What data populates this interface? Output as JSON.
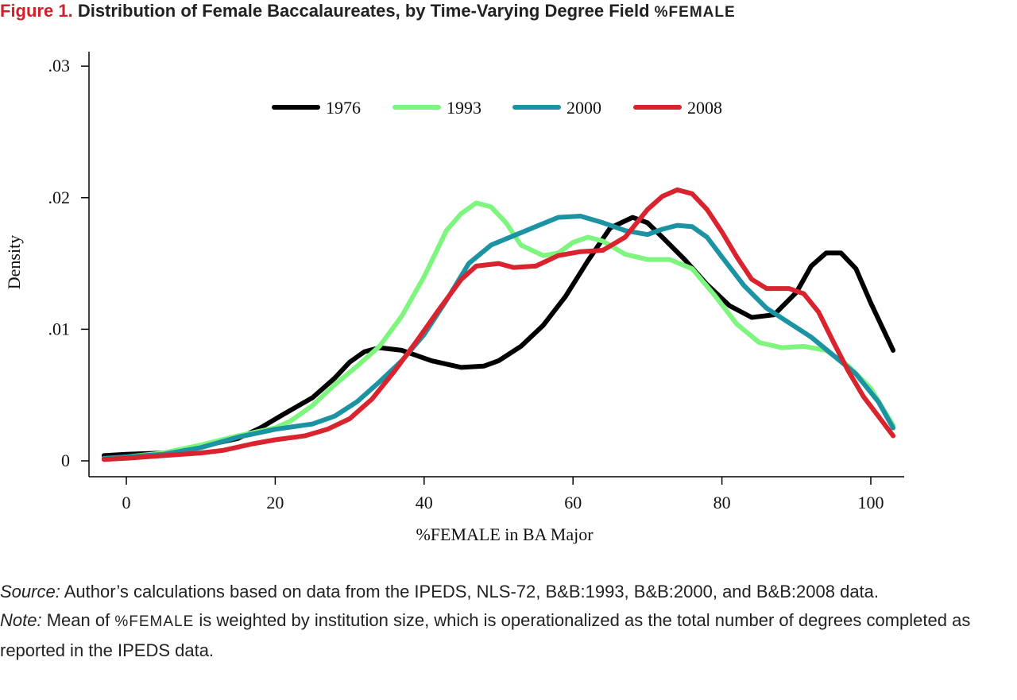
{
  "figure": {
    "label": "Figure 1.",
    "title_main": "Distribution of Female Baccalaureates, by Time-Varying Degree Field ",
    "title_sc": "%FEMALE"
  },
  "notes": {
    "source_label": "Source:",
    "source_text": "Author’s calculations based on data from the IPEDS, NLS-72, B&B:1993, B&B:2000, and B&B:2008 data.",
    "note_label": "Note:",
    "note_pre": "Mean of ",
    "note_sc": "%FEMALE",
    "note_post": " is weighted by institution size, which is operationalized as the total number of degrees completed as reported in the IPEDS data."
  },
  "chart_data": {
    "type": "line",
    "xlabel": "%FEMALE in BA Major",
    "ylabel": "Density",
    "xlim": [
      -3,
      103
    ],
    "ylim": [
      0,
      0.03
    ],
    "xticks": [
      0,
      20,
      40,
      60,
      80,
      100
    ],
    "xtick_labels": [
      "0",
      "20",
      "40",
      "60",
      "80",
      "100"
    ],
    "yticks": [
      0,
      0.01,
      0.02,
      0.03
    ],
    "ytick_labels": [
      "0",
      ".01",
      ".02",
      ".03"
    ],
    "grid": false,
    "legend_position": "top",
    "series": [
      {
        "name": "1976",
        "color": "#000000",
        "points": [
          [
            -3,
            0.0004
          ],
          [
            0,
            0.0005
          ],
          [
            5,
            0.0006
          ],
          [
            10,
            0.0011
          ],
          [
            15,
            0.0017
          ],
          [
            18,
            0.0025
          ],
          [
            21,
            0.0035
          ],
          [
            25,
            0.0048
          ],
          [
            28,
            0.0063
          ],
          [
            30,
            0.0075
          ],
          [
            32,
            0.0083
          ],
          [
            34,
            0.0086
          ],
          [
            37,
            0.0084
          ],
          [
            41,
            0.0076
          ],
          [
            45,
            0.0071
          ],
          [
            48,
            0.0072
          ],
          [
            50,
            0.0076
          ],
          [
            53,
            0.0087
          ],
          [
            56,
            0.0103
          ],
          [
            59,
            0.0125
          ],
          [
            62,
            0.0152
          ],
          [
            65,
            0.0177
          ],
          [
            68,
            0.0185
          ],
          [
            70,
            0.0181
          ],
          [
            72,
            0.017
          ],
          [
            75,
            0.0153
          ],
          [
            78,
            0.0134
          ],
          [
            81,
            0.0118
          ],
          [
            84,
            0.0109
          ],
          [
            87,
            0.0111
          ],
          [
            90,
            0.0128
          ],
          [
            92,
            0.0148
          ],
          [
            94,
            0.0158
          ],
          [
            96,
            0.0158
          ],
          [
            98,
            0.0146
          ],
          [
            100,
            0.012
          ],
          [
            103,
            0.0084
          ]
        ]
      },
      {
        "name": "1993",
        "color": "#7ef57e",
        "points": [
          [
            -3,
            0.0001
          ],
          [
            0,
            0.0003
          ],
          [
            5,
            0.0006
          ],
          [
            10,
            0.0012
          ],
          [
            15,
            0.0019
          ],
          [
            20,
            0.0025
          ],
          [
            22,
            0.003
          ],
          [
            25,
            0.0042
          ],
          [
            28,
            0.0058
          ],
          [
            31,
            0.0072
          ],
          [
            34,
            0.0087
          ],
          [
            37,
            0.011
          ],
          [
            40,
            0.014
          ],
          [
            43,
            0.0175
          ],
          [
            45,
            0.0188
          ],
          [
            47,
            0.0196
          ],
          [
            49,
            0.0193
          ],
          [
            51,
            0.0181
          ],
          [
            53,
            0.0164
          ],
          [
            56,
            0.0156
          ],
          [
            58,
            0.0158
          ],
          [
            60,
            0.0166
          ],
          [
            62,
            0.017
          ],
          [
            64,
            0.0167
          ],
          [
            67,
            0.0157
          ],
          [
            70,
            0.0153
          ],
          [
            73,
            0.0153
          ],
          [
            76,
            0.0146
          ],
          [
            79,
            0.0126
          ],
          [
            82,
            0.0104
          ],
          [
            85,
            0.009
          ],
          [
            88,
            0.0086
          ],
          [
            91,
            0.0087
          ],
          [
            94,
            0.0084
          ],
          [
            97,
            0.0072
          ],
          [
            100,
            0.0055
          ],
          [
            103,
            0.0027
          ]
        ]
      },
      {
        "name": "2000",
        "color": "#1b93a3",
        "points": [
          [
            -3,
            0.0002
          ],
          [
            0,
            0.0003
          ],
          [
            5,
            0.0005
          ],
          [
            10,
            0.001
          ],
          [
            15,
            0.0018
          ],
          [
            20,
            0.0024
          ],
          [
            25,
            0.0028
          ],
          [
            28,
            0.0034
          ],
          [
            31,
            0.0045
          ],
          [
            34,
            0.006
          ],
          [
            37,
            0.0076
          ],
          [
            40,
            0.0096
          ],
          [
            43,
            0.0122
          ],
          [
            46,
            0.015
          ],
          [
            49,
            0.0164
          ],
          [
            52,
            0.0171
          ],
          [
            55,
            0.0178
          ],
          [
            58,
            0.0185
          ],
          [
            61,
            0.0186
          ],
          [
            64,
            0.0181
          ],
          [
            67,
            0.0175
          ],
          [
            70,
            0.0172
          ],
          [
            72,
            0.0176
          ],
          [
            74,
            0.0179
          ],
          [
            76,
            0.0178
          ],
          [
            78,
            0.017
          ],
          [
            80,
            0.0155
          ],
          [
            83,
            0.0133
          ],
          [
            86,
            0.0116
          ],
          [
            89,
            0.0105
          ],
          [
            92,
            0.0094
          ],
          [
            95,
            0.008
          ],
          [
            98,
            0.0066
          ],
          [
            101,
            0.0045
          ],
          [
            103,
            0.0025
          ]
        ]
      },
      {
        "name": "2008",
        "color": "#d9232e",
        "points": [
          [
            -3,
            0.0001
          ],
          [
            0,
            0.0002
          ],
          [
            5,
            0.0004
          ],
          [
            10,
            0.0006
          ],
          [
            13,
            0.0008
          ],
          [
            17,
            0.0013
          ],
          [
            20,
            0.0016
          ],
          [
            24,
            0.0019
          ],
          [
            27,
            0.0024
          ],
          [
            30,
            0.0032
          ],
          [
            33,
            0.0047
          ],
          [
            36,
            0.0068
          ],
          [
            39,
            0.0091
          ],
          [
            42,
            0.0115
          ],
          [
            45,
            0.0138
          ],
          [
            47,
            0.0148
          ],
          [
            50,
            0.015
          ],
          [
            52,
            0.0147
          ],
          [
            55,
            0.0148
          ],
          [
            58,
            0.0156
          ],
          [
            61,
            0.0159
          ],
          [
            64,
            0.016
          ],
          [
            67,
            0.017
          ],
          [
            70,
            0.0191
          ],
          [
            72,
            0.0201
          ],
          [
            74,
            0.0206
          ],
          [
            76,
            0.0203
          ],
          [
            78,
            0.0191
          ],
          [
            80,
            0.0174
          ],
          [
            82,
            0.0155
          ],
          [
            84,
            0.0138
          ],
          [
            86,
            0.0131
          ],
          [
            89,
            0.0131
          ],
          [
            91,
            0.0127
          ],
          [
            93,
            0.0113
          ],
          [
            95,
            0.009
          ],
          [
            97,
            0.0068
          ],
          [
            99,
            0.0049
          ],
          [
            101,
            0.0034
          ],
          [
            103,
            0.0019
          ]
        ]
      }
    ]
  }
}
